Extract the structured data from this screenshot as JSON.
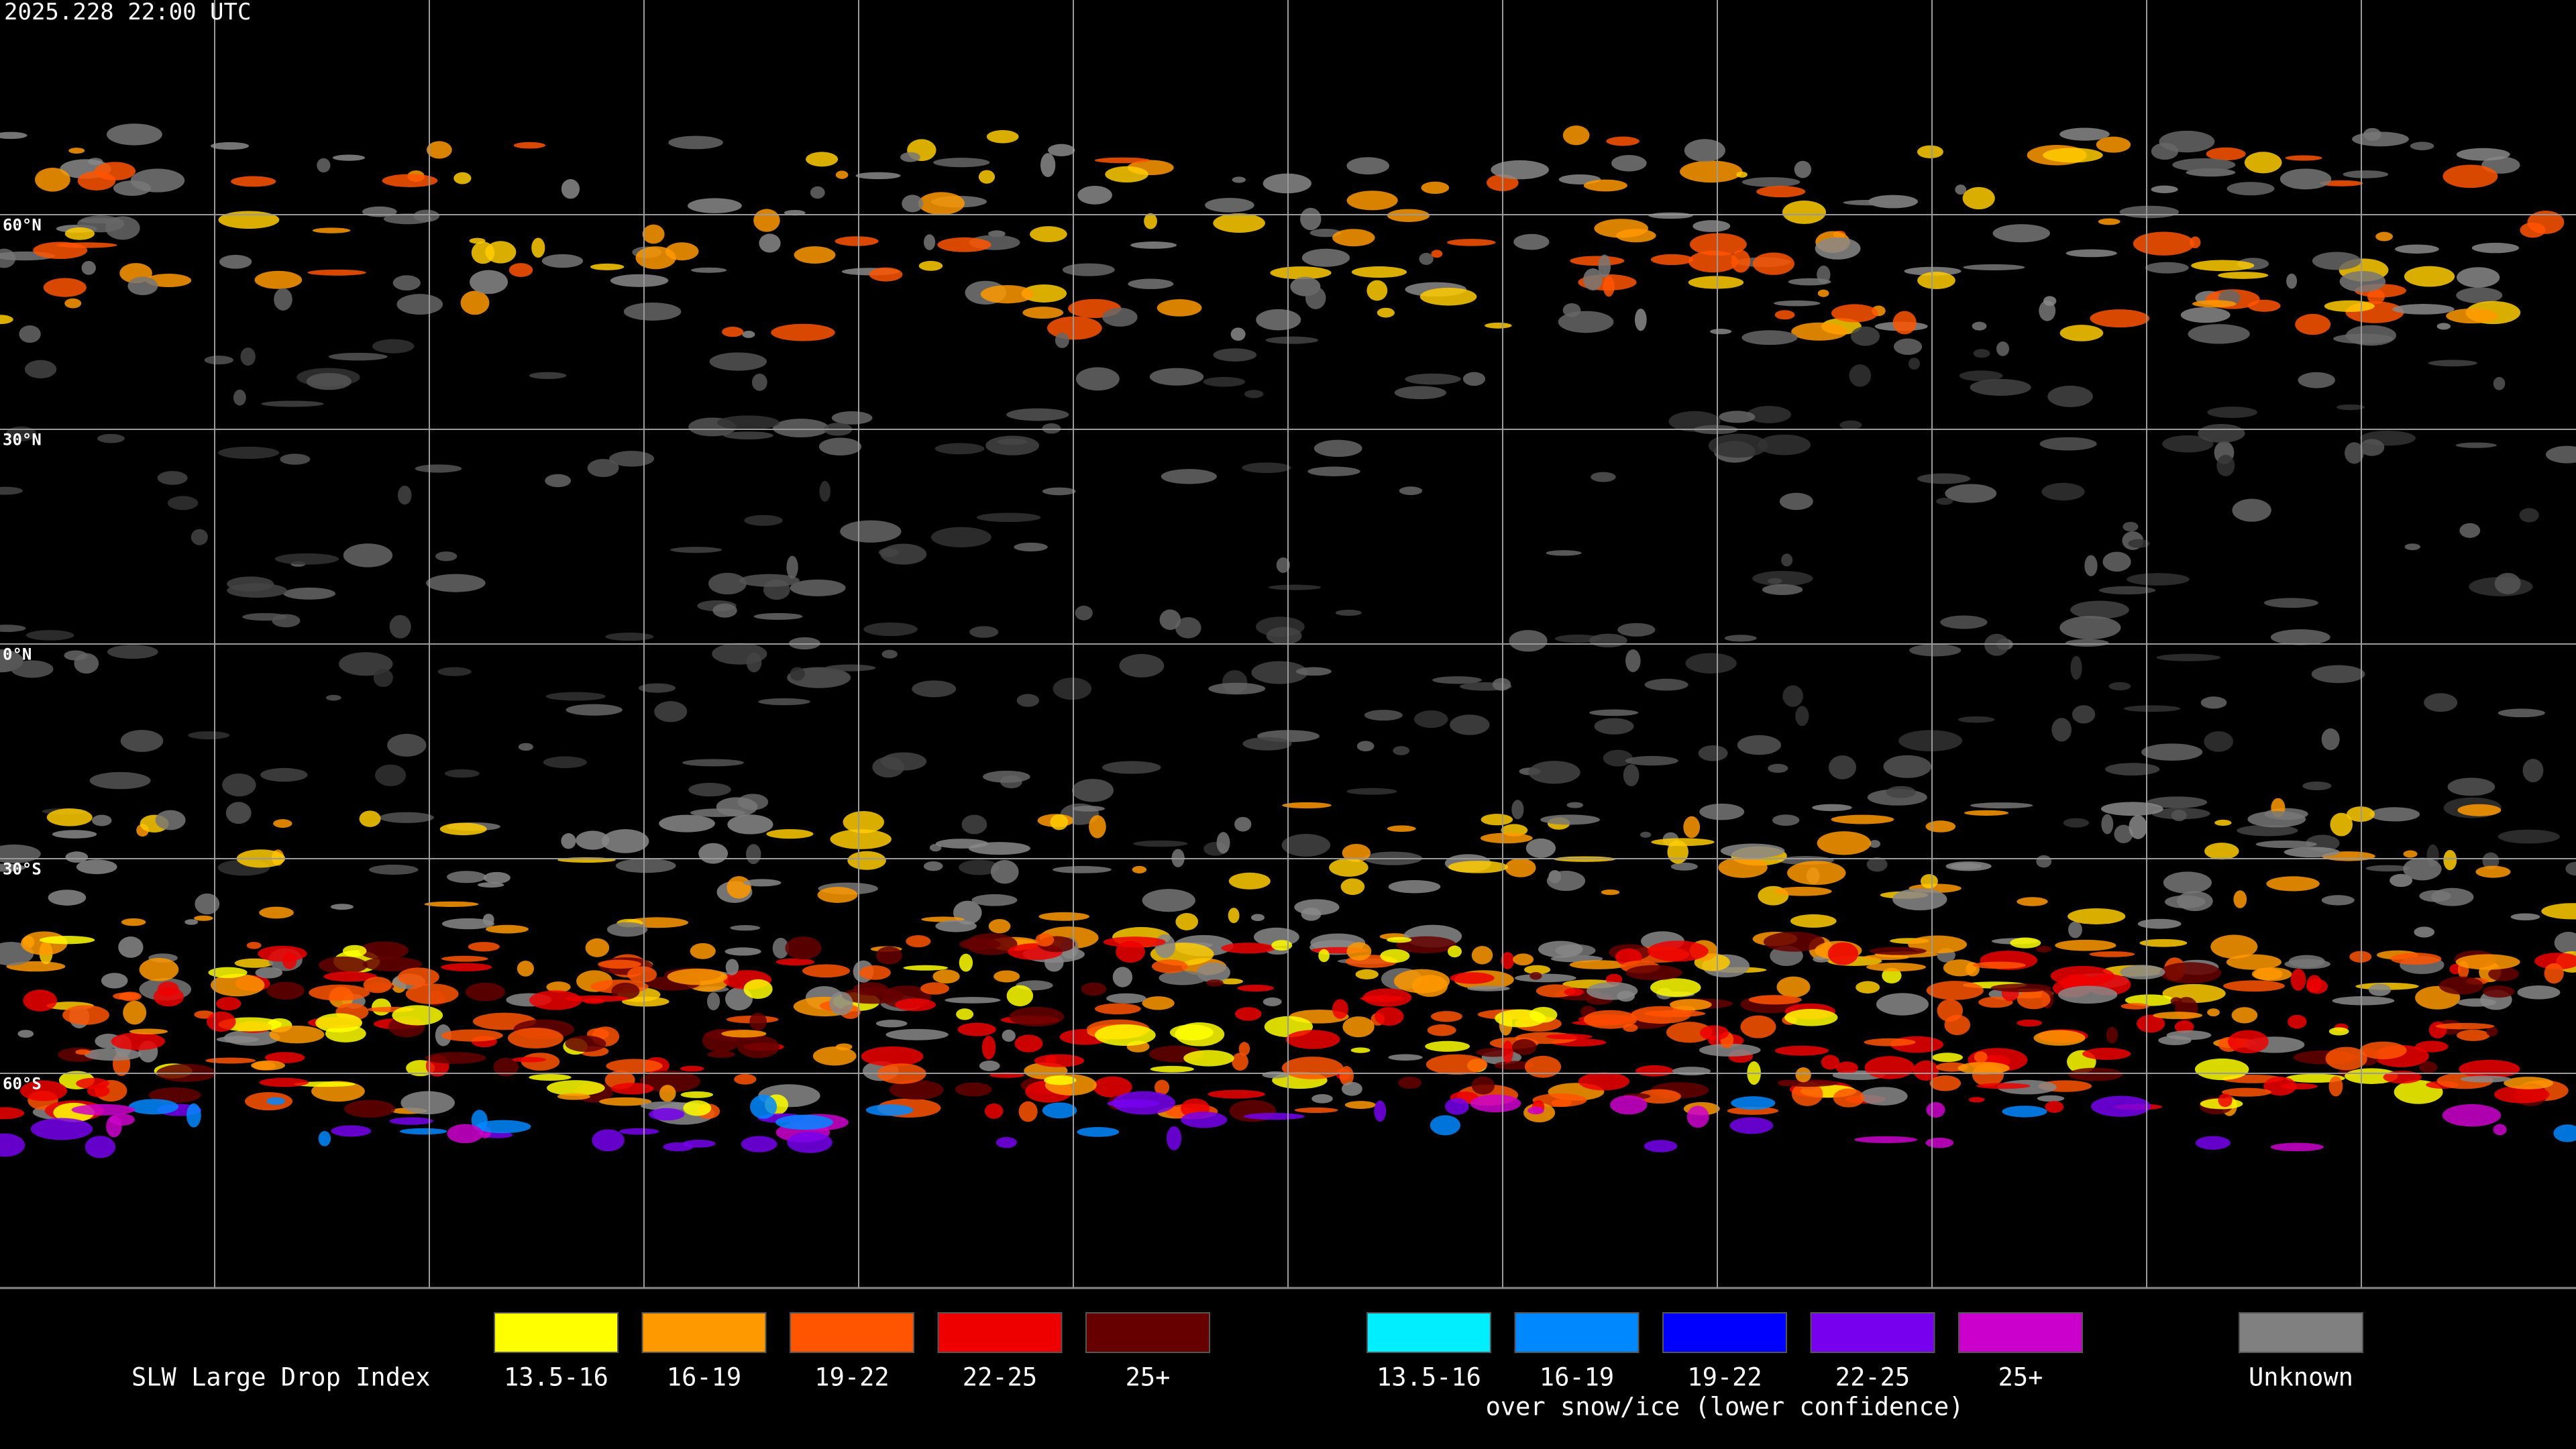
{
  "header": {
    "timestamp": "2025.228 22:00 UTC"
  },
  "map": {
    "lat_labels": [
      "60°N",
      "30°N",
      "0°N",
      "30°S",
      "60°S"
    ]
  },
  "legend": {
    "title": "SLW Large Drop Index",
    "groups": [
      {
        "items": [
          {
            "label": "13.5-16",
            "color": "#ffff00"
          },
          {
            "label": "16-19",
            "color": "#ff9900"
          },
          {
            "label": "19-22",
            "color": "#ff5500"
          },
          {
            "label": "22-25",
            "color": "#ee0000"
          },
          {
            "label": "25+",
            "color": "#660000"
          }
        ]
      },
      {
        "items": [
          {
            "label": "13.5-16",
            "color": "#00eeff"
          },
          {
            "label": "16-19",
            "color": "#0088ff"
          },
          {
            "label": "19-22",
            "color": "#0000ff"
          },
          {
            "label": "22-25",
            "color": "#7700ee"
          },
          {
            "label": "25+",
            "color": "#cc00cc"
          }
        ],
        "note": "over snow/ice (lower confidence)"
      },
      {
        "items": [
          {
            "label": "Unknown",
            "color": "#808080"
          }
        ]
      }
    ]
  }
}
